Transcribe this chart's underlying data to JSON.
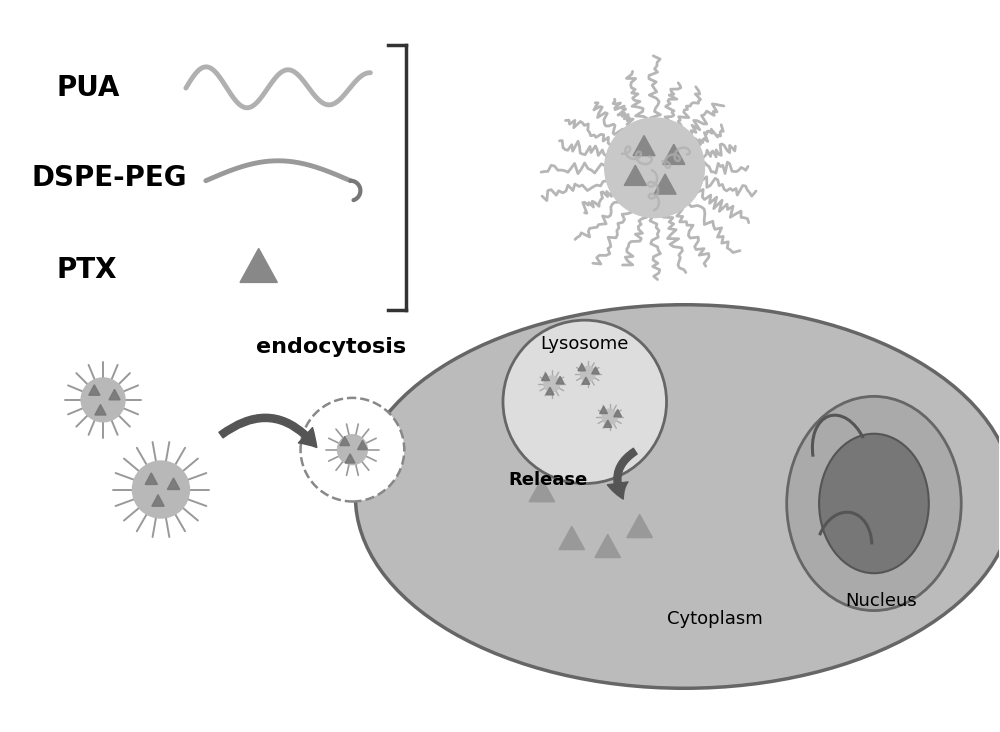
{
  "bg_color": "#ffffff",
  "text_color": "#000000",
  "label_PUA": "PUA",
  "label_DSPE": "DSPE-PEG",
  "label_PTX": "PTX",
  "label_endocytosis": "endocytosis",
  "label_lysosome": "Lysosome",
  "label_release": "Release",
  "label_cytoplasm": "Cytoplasm",
  "label_nucleus": "Nucleus",
  "gray_light": "#aaaaaa",
  "gray_mid": "#888888",
  "gray_dark": "#555555",
  "gray_cell": "#bbbbbb",
  "gray_cell_border": "#666666",
  "gray_lysosome": "#dddddd",
  "gray_nucleus_outer": "#aaaaaa",
  "gray_nucleus_dark": "#777777",
  "gray_nucleus_border": "#555555"
}
